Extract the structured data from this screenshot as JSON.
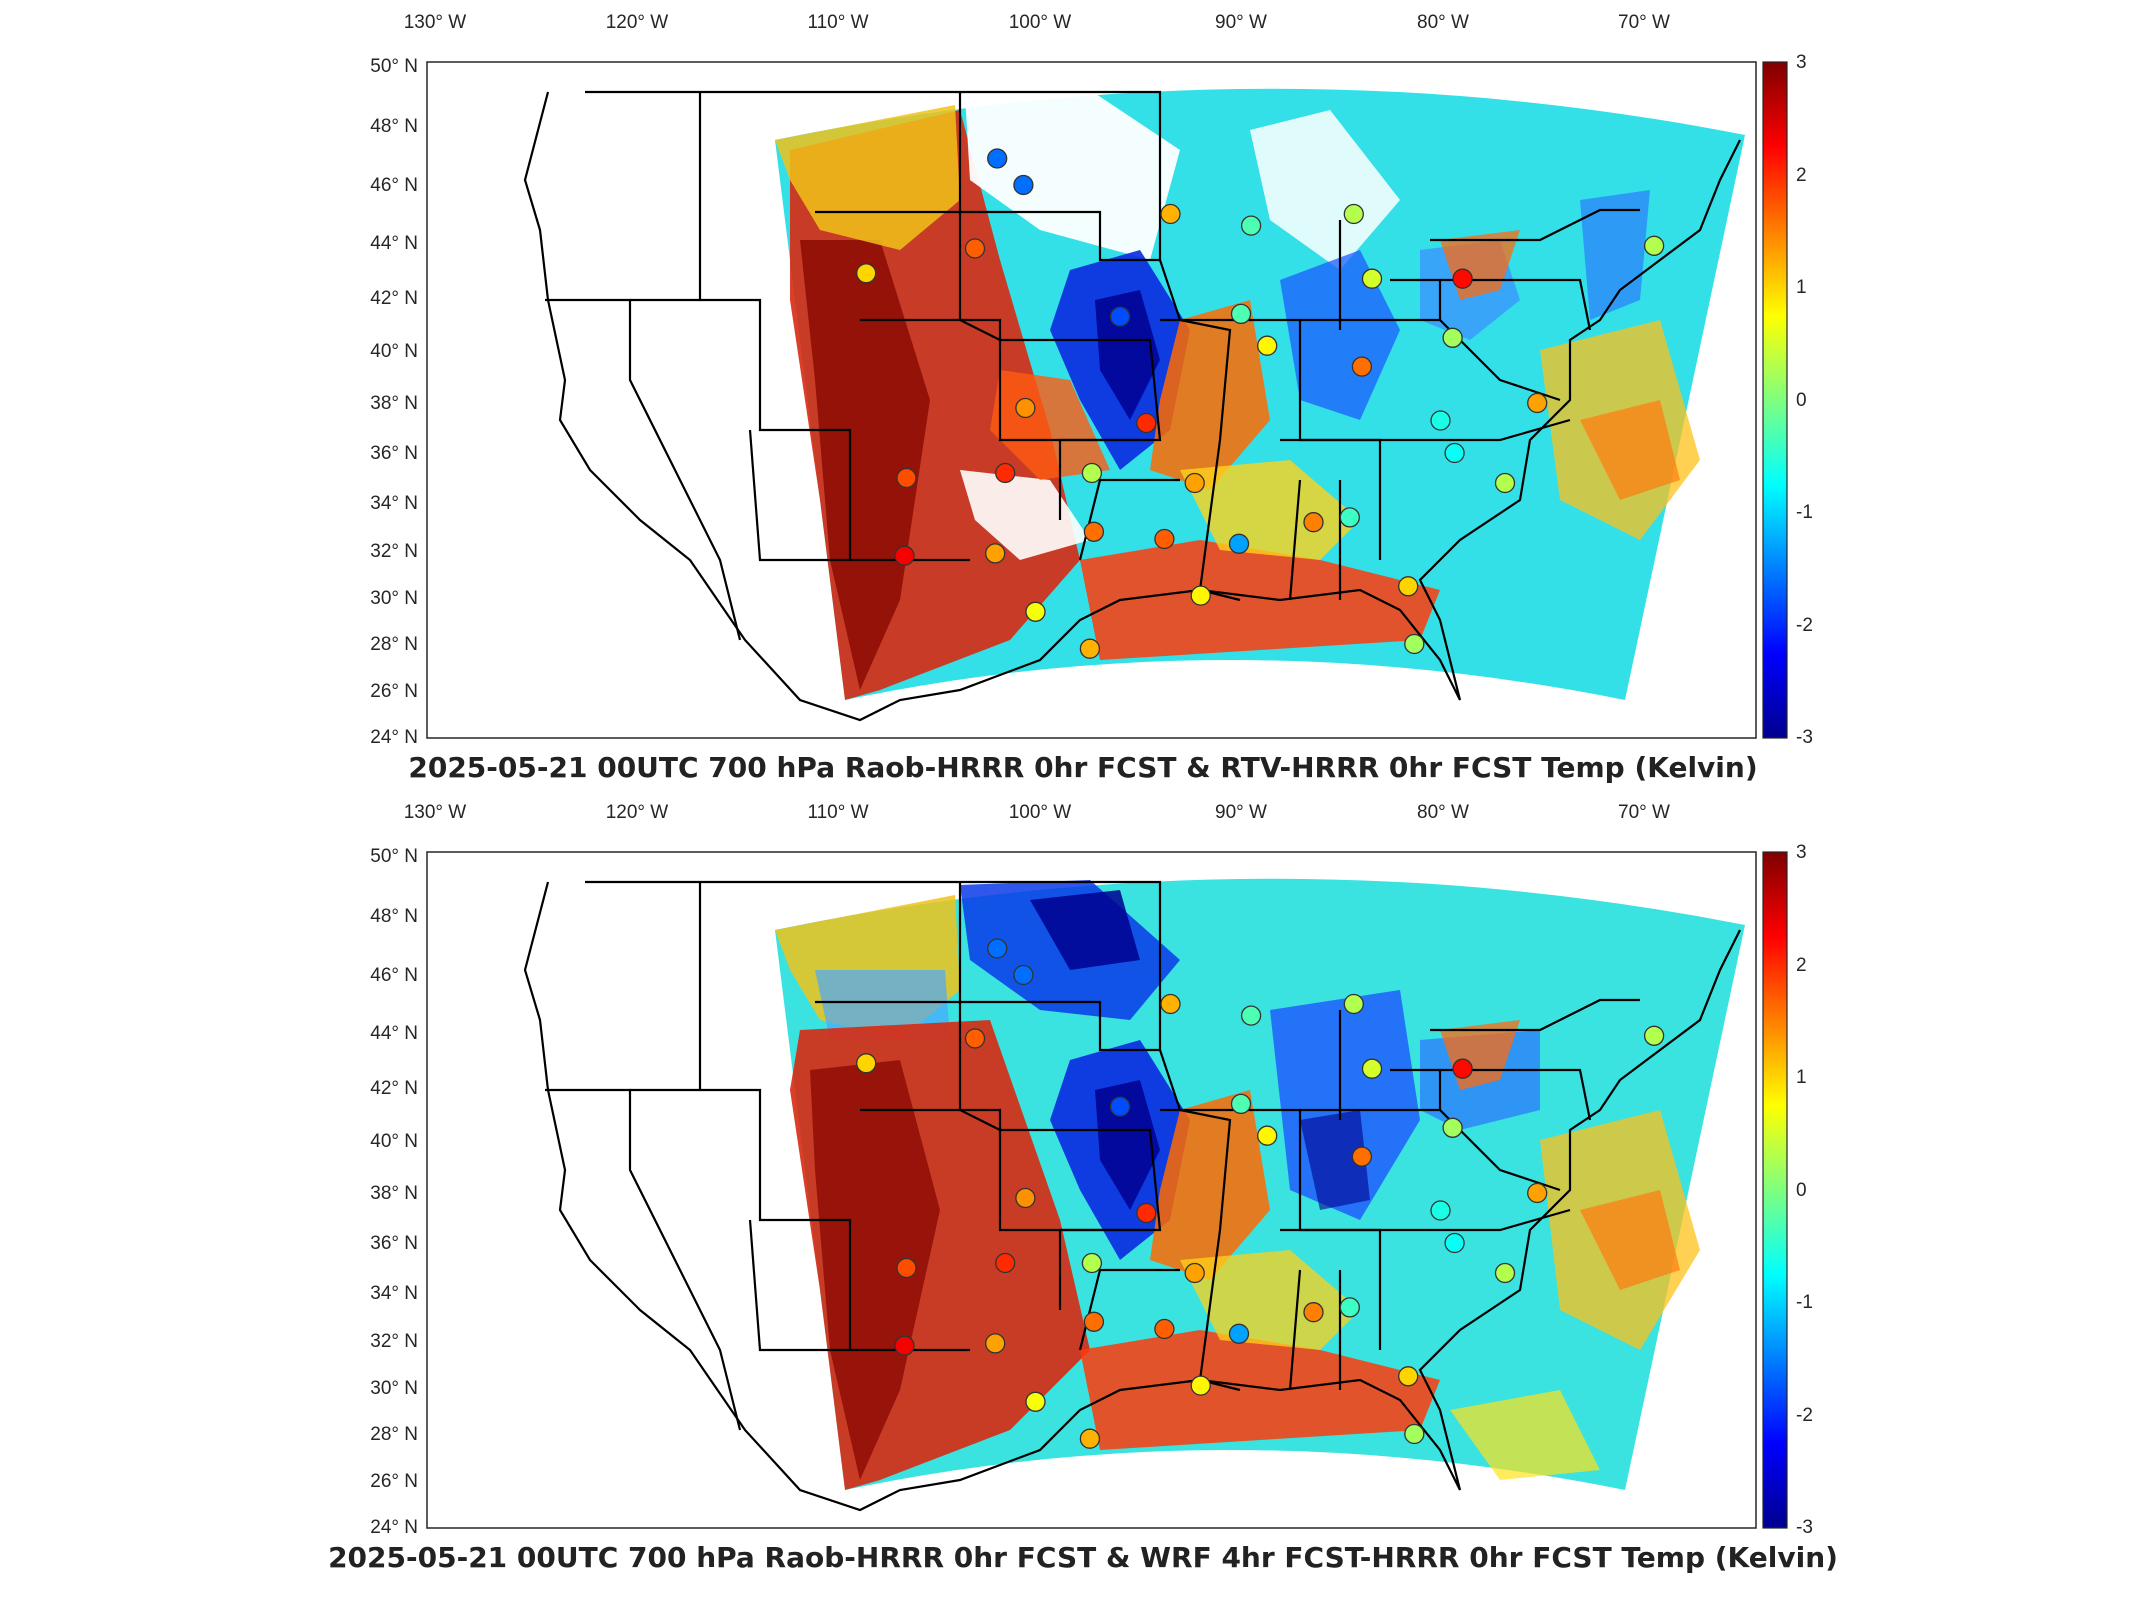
{
  "colors": {
    "colormap": "jet",
    "frame": "#262626",
    "coastline": "#000000",
    "state_lines": "#000000",
    "station_outline": "#333333",
    "background": "#ffffff"
  },
  "map_panels": [
    {
      "title": "2025-05-21 00UTC 700 hPa Raob-HRRR 0hr FCST & RTV-HRRR 0hr FCST Temp (Kelvin)",
      "lon_ticks": [
        "130° W",
        "120° W",
        "110° W",
        "100° W",
        "90° W",
        "80° W",
        "70° W"
      ],
      "lat_ticks": [
        "50° N",
        "48° N",
        "46° N",
        "44° N",
        "42° N",
        "40° N",
        "38° N",
        "36° N",
        "34° N",
        "32° N",
        "30° N",
        "28° N",
        "26° N",
        "24° N"
      ],
      "colorbar": {
        "ticks": [
          "3",
          "2",
          "1",
          "0",
          "-1",
          "-2",
          "-3"
        ],
        "range": [
          -3,
          3
        ]
      }
    },
    {
      "title": "2025-05-21 00UTC 700 hPa Raob-HRRR 0hr FCST & WRF 4hr FCST-HRRR 0hr FCST Temp (Kelvin)",
      "lon_ticks": [
        "130° W",
        "120° W",
        "110° W",
        "100° W",
        "90° W",
        "80° W",
        "70° W"
      ],
      "lat_ticks": [
        "50° N",
        "48° N",
        "46° N",
        "44° N",
        "42° N",
        "40° N",
        "38° N",
        "36° N",
        "34° N",
        "32° N",
        "30° N",
        "28° N",
        "26° N",
        "24° N"
      ],
      "colorbar": {
        "ticks": [
          "3",
          "2",
          "1",
          "0",
          "-1",
          "-2",
          "-3"
        ],
        "range": [
          -3,
          3
        ]
      }
    }
  ],
  "stations": [
    {
      "lon": -102.1,
      "lat": 46.9,
      "value": -1.6
    },
    {
      "lon": -100.8,
      "lat": 46.0,
      "value": -1.6
    },
    {
      "lon": -93.5,
      "lat": 45.0,
      "value": 1.2
    },
    {
      "lon": -89.5,
      "lat": 44.6,
      "value": -0.3
    },
    {
      "lon": -84.4,
      "lat": 45.0,
      "value": 0.3
    },
    {
      "lon": -108.6,
      "lat": 42.9,
      "value": 1.0
    },
    {
      "lon": -103.2,
      "lat": 43.8,
      "value": 1.7
    },
    {
      "lon": -83.5,
      "lat": 42.7,
      "value": 0.5
    },
    {
      "lon": -79.0,
      "lat": 42.7,
      "value": 2.2
    },
    {
      "lon": -69.5,
      "lat": 43.9,
      "value": 0.3
    },
    {
      "lon": -96.0,
      "lat": 41.3,
      "value": -1.8
    },
    {
      "lon": -90.0,
      "lat": 41.4,
      "value": -0.3
    },
    {
      "lon": -88.7,
      "lat": 40.2,
      "value": 0.8
    },
    {
      "lon": -84.0,
      "lat": 39.4,
      "value": 1.6
    },
    {
      "lon": -79.5,
      "lat": 40.5,
      "value": 0.2
    },
    {
      "lon": -75.3,
      "lat": 38.0,
      "value": 1.3
    },
    {
      "lon": -100.7,
      "lat": 37.8,
      "value": 1.4
    },
    {
      "lon": -94.7,
      "lat": 37.2,
      "value": 2.0
    },
    {
      "lon": -80.1,
      "lat": 37.3,
      "value": -0.6
    },
    {
      "lon": -79.4,
      "lat": 36.0,
      "value": -0.7
    },
    {
      "lon": -106.6,
      "lat": 35.0,
      "value": 1.8
    },
    {
      "lon": -101.7,
      "lat": 35.2,
      "value": 2.0
    },
    {
      "lon": -97.4,
      "lat": 35.2,
      "value": 0.3
    },
    {
      "lon": -92.3,
      "lat": 34.8,
      "value": 1.3
    },
    {
      "lon": -76.9,
      "lat": 34.8,
      "value": 0.3
    },
    {
      "lon": -97.3,
      "lat": 32.8,
      "value": 1.6
    },
    {
      "lon": -93.8,
      "lat": 32.5,
      "value": 1.7
    },
    {
      "lon": -90.1,
      "lat": 32.3,
      "value": -1.3
    },
    {
      "lon": -86.4,
      "lat": 33.2,
      "value": 1.5
    },
    {
      "lon": -84.6,
      "lat": 33.4,
      "value": -0.4
    },
    {
      "lon": -106.7,
      "lat": 31.8,
      "value": 2.3
    },
    {
      "lon": -102.2,
      "lat": 31.9,
      "value": 1.3
    },
    {
      "lon": -100.2,
      "lat": 29.4,
      "value": 0.7
    },
    {
      "lon": -97.5,
      "lat": 27.8,
      "value": 1.2
    },
    {
      "lon": -92.0,
      "lat": 30.1,
      "value": 0.8
    },
    {
      "lon": -81.7,
      "lat": 30.5,
      "value": 1.0
    },
    {
      "lon": -81.4,
      "lat": 28.0,
      "value": 0.2
    }
  ]
}
